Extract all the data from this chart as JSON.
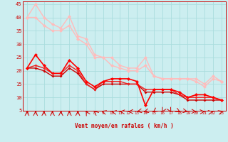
{
  "background_color": "#cceef0",
  "grid_color": "#aadddd",
  "x_label": "Vent moyen/en rafales ( km/h )",
  "xlim": [
    -0.5,
    23.5
  ],
  "ylim": [
    5,
    46
  ],
  "yticks": [
    5,
    10,
    15,
    20,
    25,
    30,
    35,
    40,
    45
  ],
  "xticks": [
    0,
    1,
    2,
    3,
    4,
    5,
    6,
    7,
    8,
    9,
    10,
    11,
    12,
    13,
    14,
    15,
    16,
    17,
    18,
    19,
    20,
    21,
    22,
    23
  ],
  "line_light1": {
    "x": [
      0,
      1,
      2,
      3,
      4,
      5,
      6,
      7,
      8,
      9,
      10,
      11,
      12,
      13,
      14,
      15,
      16,
      17,
      18,
      19,
      20,
      21,
      22,
      23
    ],
    "y": [
      40,
      45,
      40,
      37.5,
      36,
      40.5,
      33,
      32,
      26,
      25,
      25,
      22,
      21,
      21,
      25,
      18,
      17,
      17,
      17,
      17,
      17,
      15,
      18,
      16
    ],
    "color": "#ffbbbb",
    "lw": 1.0,
    "marker": "D",
    "ms": 2.5
  },
  "line_light2": {
    "x": [
      0,
      1,
      2,
      3,
      4,
      5,
      6,
      7,
      8,
      9,
      10,
      11,
      12,
      13,
      14,
      15,
      16,
      17,
      18,
      19,
      20,
      21,
      22,
      23
    ],
    "y": [
      40,
      40,
      37,
      35,
      35,
      37,
      32,
      30,
      25,
      25,
      22,
      21,
      20,
      20,
      22,
      18,
      17,
      17,
      17,
      17,
      16,
      14,
      17,
      16
    ],
    "color": "#ffbbbb",
    "lw": 1.0,
    "marker": "D",
    "ms": 2.5
  },
  "line_dark1": {
    "x": [
      0,
      1,
      2,
      3,
      4,
      5,
      6,
      7,
      8,
      9,
      10,
      11,
      12,
      13,
      14,
      15,
      16,
      17,
      18,
      19,
      20,
      21,
      22,
      23
    ],
    "y": [
      21,
      26,
      22,
      19,
      19,
      24,
      21,
      16,
      14,
      16,
      17,
      17,
      17,
      16,
      7,
      13,
      13,
      13,
      12,
      10,
      11,
      11,
      10,
      9
    ],
    "color": "#ff0000",
    "lw": 1.2,
    "marker": "D",
    "ms": 2.5
  },
  "line_dark2": {
    "x": [
      0,
      1,
      2,
      3,
      4,
      5,
      6,
      7,
      8,
      9,
      10,
      11,
      12,
      13,
      14,
      15,
      16,
      17,
      18,
      19,
      20,
      21,
      22,
      23
    ],
    "y": [
      21,
      22,
      21,
      19,
      19,
      22,
      20,
      15,
      13,
      16,
      16,
      16,
      15,
      15,
      13,
      13,
      13,
      13,
      11,
      10,
      10,
      10,
      10,
      9
    ],
    "color": "#ee2222",
    "lw": 1.0,
    "marker": "D",
    "ms": 2.0
  },
  "line_dark3": {
    "x": [
      0,
      1,
      2,
      3,
      4,
      5,
      6,
      7,
      8,
      9,
      10,
      11,
      12,
      13,
      14,
      15,
      16,
      17,
      18,
      19,
      20,
      21,
      22,
      23
    ],
    "y": [
      21,
      21,
      20,
      18,
      18,
      21,
      19,
      15,
      13,
      15,
      15,
      15,
      15,
      15,
      12,
      12,
      12,
      12,
      11,
      9,
      9,
      9,
      9,
      9
    ],
    "color": "#cc0000",
    "lw": 1.0,
    "marker": "D",
    "ms": 2.0
  },
  "wind_dirs": [
    180,
    180,
    180,
    180,
    180,
    180,
    180,
    190,
    200,
    225,
    240,
    255,
    270,
    300,
    315,
    335,
    350,
    10,
    30,
    60,
    80,
    100,
    120,
    135
  ]
}
